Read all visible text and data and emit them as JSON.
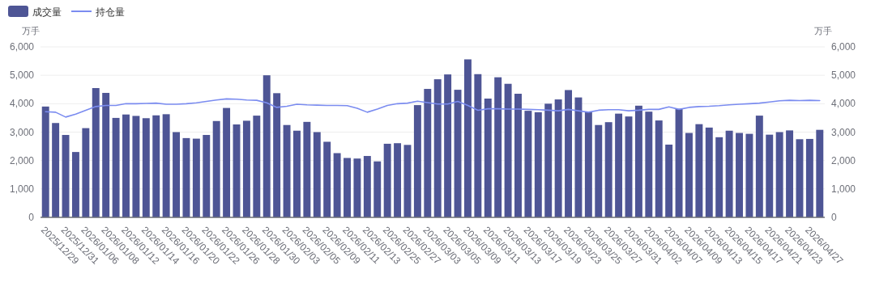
{
  "chart_data": {
    "type": "bar",
    "categories": [
      "2025/12/29",
      null,
      "2025/12/31",
      null,
      "2026/01/06",
      null,
      "2026/01/08",
      null,
      "2026/01/12",
      null,
      "2026/01/14",
      null,
      "2026/01/16",
      null,
      "2026/01/20",
      null,
      "2026/01/22",
      null,
      "2026/01/26",
      null,
      "2026/01/28",
      null,
      "2026/01/30",
      null,
      "2026/02/03",
      null,
      "2026/02/05",
      null,
      "2026/02/09",
      null,
      "2026/02/11",
      null,
      "2026/02/13",
      null,
      "2026/02/25",
      null,
      "2026/02/27",
      null,
      "2026/03/03",
      null,
      "2026/03/05",
      null,
      "2026/03/09",
      null,
      "2026/03/11",
      null,
      "2026/03/13",
      null,
      "2026/03/17",
      null,
      "2026/03/19",
      null,
      "2026/03/23",
      null,
      "2026/03/25",
      null,
      "2026/03/27",
      null,
      "2026/03/31",
      null,
      "2026/04/02",
      null,
      "2026/04/07",
      null,
      "2026/04/09",
      null,
      "2026/04/13",
      null,
      "2026/04/15",
      null,
      "2026/04/17",
      null,
      "2026/04/21",
      null,
      "2026/04/23",
      null,
      "2026/04/27",
      null
    ],
    "series": [
      {
        "name": "成交量",
        "color": "#4e5595",
        "values": [
          3900,
          3320,
          2900,
          2300,
          3140,
          4550,
          4380,
          3500,
          3620,
          3570,
          3490,
          3590,
          3630,
          3000,
          2790,
          2770,
          2900,
          3390,
          3850,
          3270,
          3400,
          3580,
          5000,
          4370,
          3250,
          3050,
          3360,
          3000,
          2660,
          2260,
          2090,
          2070,
          2160,
          1970,
          2590,
          2610,
          2550,
          3950,
          4520,
          4860,
          5030,
          4490,
          5560,
          5040,
          4180,
          4930,
          4700,
          4350,
          3750,
          3700,
          4000,
          4150,
          4480,
          4220,
          3700,
          3250,
          3350,
          3650,
          3550,
          3930,
          3720,
          3410,
          2560,
          3820,
          2970,
          3280,
          3160,
          2820,
          3050,
          2970,
          2940,
          3580,
          2910,
          3000,
          3060,
          2750,
          2760,
          3080
        ]
      },
      {
        "name": "持仓量",
        "type": "line",
        "axis": "y2",
        "color": "#7b8cf0",
        "values": [
          3720,
          3700,
          3530,
          3630,
          3770,
          3900,
          3940,
          3940,
          4000,
          4000,
          4010,
          4020,
          3980,
          3980,
          4000,
          4030,
          4080,
          4130,
          4170,
          4160,
          4130,
          4120,
          4030,
          3870,
          3910,
          3980,
          3960,
          3950,
          3940,
          3940,
          3930,
          3840,
          3700,
          3810,
          3940,
          4000,
          4020,
          4090,
          4040,
          3990,
          3990,
          4080,
          3940,
          3770,
          3820,
          3820,
          3810,
          3810,
          3800,
          3790,
          3770,
          3750,
          3800,
          3750,
          3700,
          3770,
          3790,
          3790,
          3750,
          3770,
          3800,
          3800,
          3890,
          3800,
          3870,
          3900,
          3910,
          3930,
          3960,
          3980,
          4000,
          4020,
          4060,
          4100,
          4120,
          4110,
          4120,
          4110
        ]
      }
    ],
    "ylabel": "万手",
    "y2label": "万手",
    "ylim": [
      0,
      6000
    ],
    "yticks": [
      0,
      {
        "value": 1000,
        "label": "1,000"
      },
      {
        "value": 2000,
        "label": "2,000"
      },
      {
        "value": 3000,
        "label": "3,000"
      },
      {
        "value": 4000,
        "label": "4,000"
      },
      {
        "value": 5000,
        "label": "5,000"
      },
      {
        "value": 6000,
        "label": "6,000"
      }
    ],
    "y2lim": [
      0,
      6000
    ],
    "y2ticks": [
      0,
      {
        "value": 1000,
        "label": "1,000"
      },
      {
        "value": 2000,
        "label": "2,000"
      },
      {
        "value": 3000,
        "label": "3,000"
      },
      {
        "value": 4000,
        "label": "4,000"
      },
      {
        "value": 5000,
        "label": "5,000"
      },
      {
        "value": 6000,
        "label": "6,000"
      }
    ],
    "grid": "y",
    "legend": "top left"
  }
}
